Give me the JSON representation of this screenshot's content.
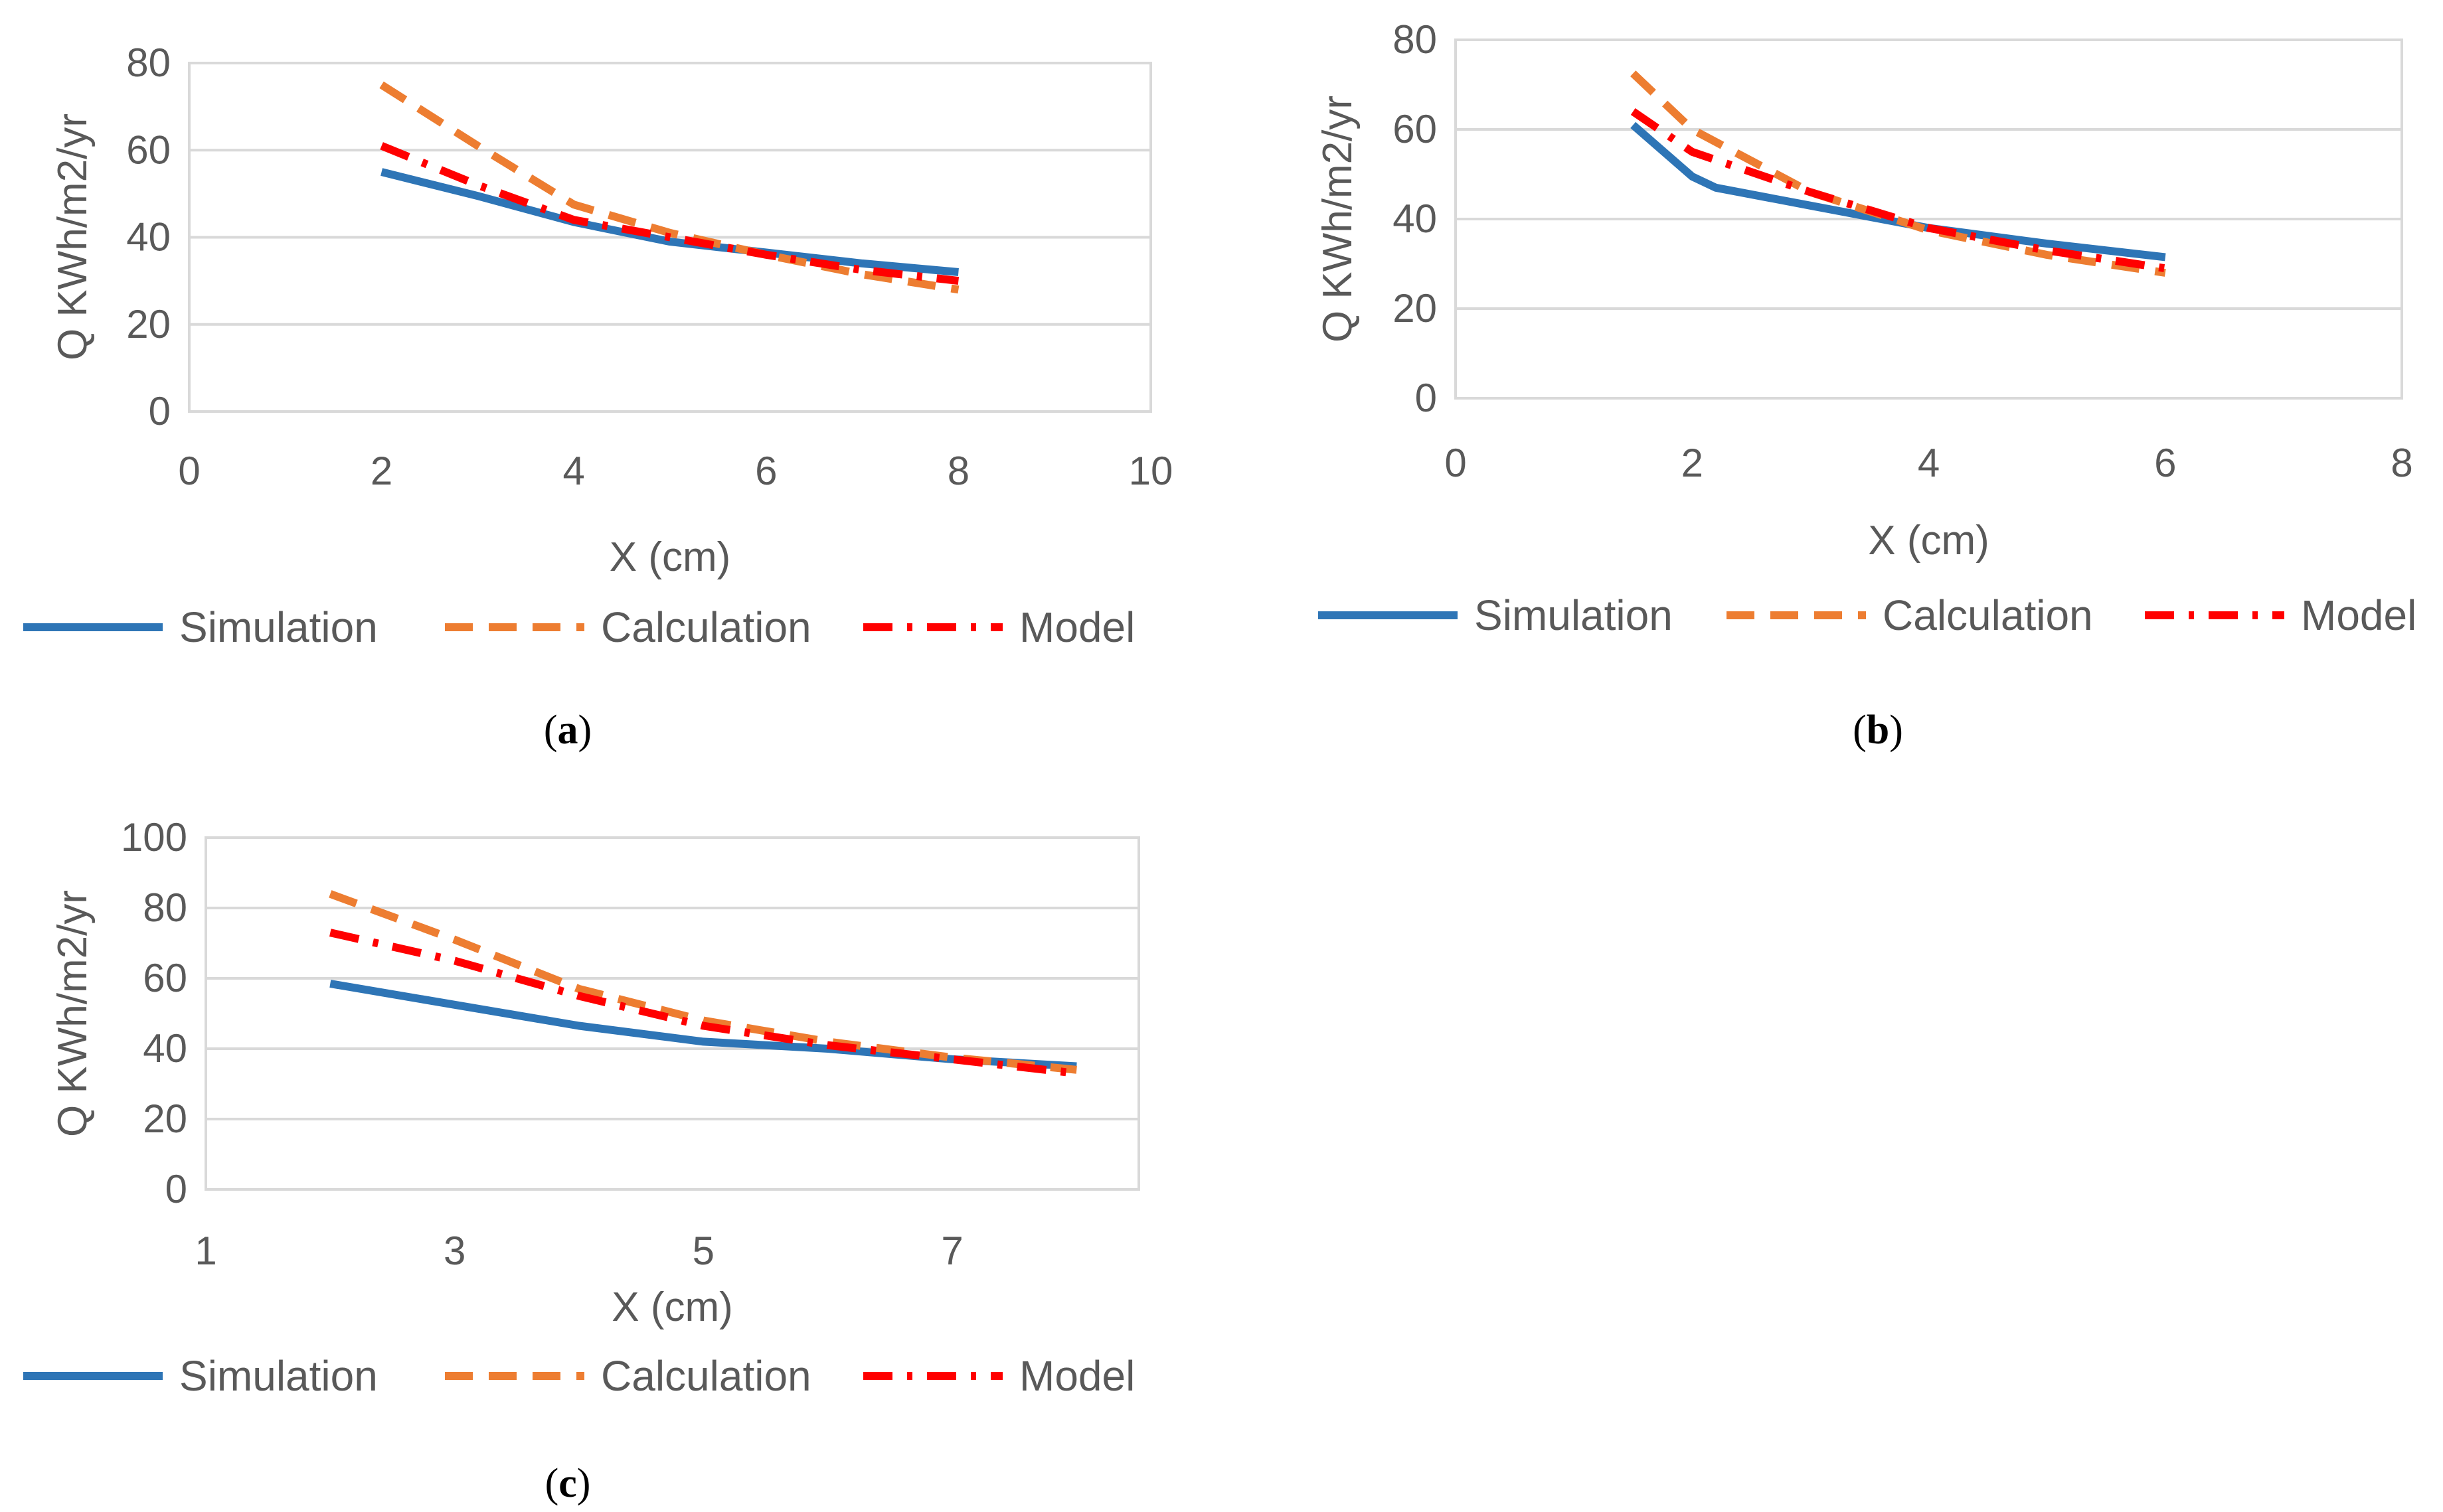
{
  "series_styles": [
    {
      "name": "Simulation",
      "color": "#2e75b6",
      "dash": "solid"
    },
    {
      "name": "Calculation",
      "color": "#ed7d31",
      "dash": "dashed"
    },
    {
      "name": "Model",
      "color": "#ff0000",
      "dash": "dash-dot"
    }
  ],
  "chart_data": [
    {
      "panel": "a",
      "caption": "(a)",
      "type": "line",
      "xlabel": "X (cm)",
      "ylabel": "Q KWh/m2/yr",
      "xlim": [
        0,
        10
      ],
      "ylim": [
        0,
        80
      ],
      "x_ticks": [
        0,
        2,
        4,
        6,
        8,
        10
      ],
      "y_ticks": [
        0,
        20,
        40,
        60,
        80
      ],
      "grid": true,
      "legend": "bottom",
      "series": [
        {
          "name": "Simulation",
          "x": [
            2,
            3,
            4,
            5,
            6,
            7,
            8
          ],
          "y": [
            55,
            49.5,
            43.5,
            39,
            36.5,
            34,
            32
          ]
        },
        {
          "name": "Calculation",
          "x": [
            2,
            3,
            4,
            5,
            6,
            7,
            8
          ],
          "y": [
            75,
            61,
            47.5,
            41,
            36,
            31.5,
            28
          ]
        },
        {
          "name": "Model",
          "x": [
            2,
            3,
            4,
            5,
            6,
            7,
            8
          ],
          "y": [
            61,
            52,
            44,
            40,
            36,
            32.5,
            30
          ]
        }
      ]
    },
    {
      "panel": "b",
      "caption": "(b)",
      "type": "line",
      "xlabel": "X (cm)",
      "ylabel": "Q KWh/m2/yr",
      "xlim": [
        0,
        8
      ],
      "ylim": [
        0,
        80
      ],
      "x_ticks": [
        0,
        2,
        4,
        6,
        8
      ],
      "y_ticks": [
        0,
        20,
        40,
        60,
        80
      ],
      "grid": true,
      "legend": "bottom",
      "series": [
        {
          "name": "Simulation",
          "x": [
            1.5,
            2,
            2.2,
            3,
            4,
            5,
            6
          ],
          "y": [
            61,
            49.5,
            47,
            43,
            38,
            34.5,
            31.5
          ]
        },
        {
          "name": "Calculation",
          "x": [
            1.5,
            2,
            3,
            4,
            5,
            6
          ],
          "y": [
            72.5,
            60,
            46,
            37.5,
            32,
            28
          ]
        },
        {
          "name": "Model",
          "x": [
            1.5,
            2,
            3,
            4,
            5,
            6
          ],
          "y": [
            64,
            55,
            46,
            38,
            33,
            29
          ]
        }
      ]
    },
    {
      "panel": "c",
      "caption": "(c)",
      "type": "line",
      "xlabel": "X (cm)",
      "ylabel": "Q KWh/m2/yr",
      "xlim": [
        1,
        8.5
      ],
      "ylim": [
        0,
        100
      ],
      "x_ticks": [
        1,
        3,
        5,
        7
      ],
      "y_ticks": [
        0,
        20,
        40,
        60,
        80,
        100
      ],
      "grid": true,
      "legend": "bottom",
      "series": [
        {
          "name": "Simulation",
          "x": [
            2,
            3,
            4,
            5,
            6,
            7,
            8
          ],
          "y": [
            58.5,
            52.5,
            46.5,
            42,
            40,
            37,
            35
          ]
        },
        {
          "name": "Calculation",
          "x": [
            2,
            3,
            4,
            5,
            6,
            7,
            8
          ],
          "y": [
            84,
            71,
            57,
            48,
            42,
            37.5,
            34
          ]
        },
        {
          "name": "Model",
          "x": [
            2,
            3,
            4,
            5,
            6,
            7,
            8
          ],
          "y": [
            73,
            65,
            55,
            46.5,
            41,
            37,
            33
          ]
        }
      ]
    }
  ]
}
